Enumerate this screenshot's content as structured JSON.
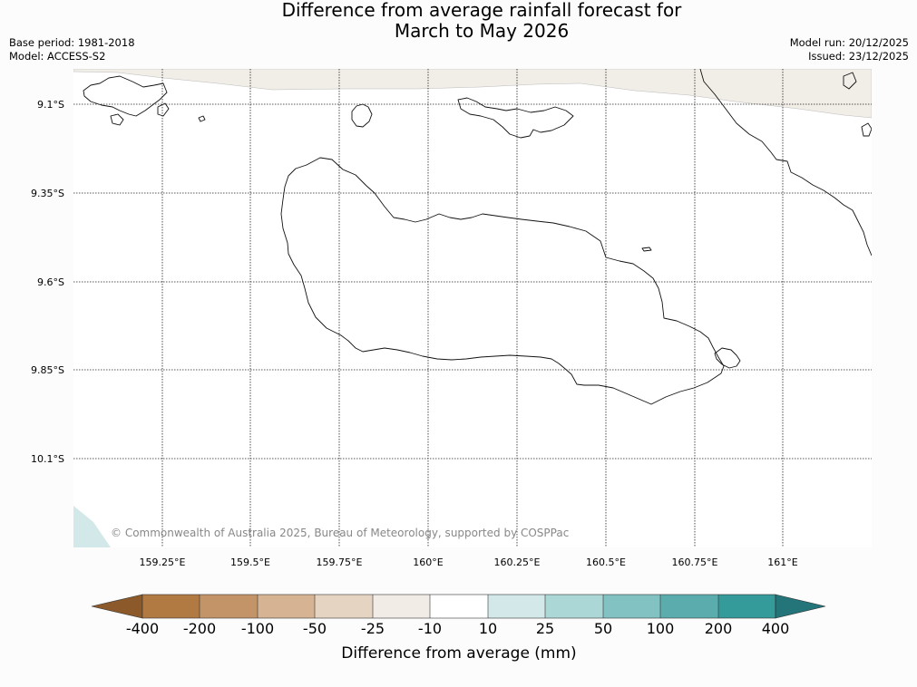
{
  "header": {
    "title_line1": "Difference from average rainfall forecast for",
    "title_line2": "March to May 2026",
    "base_period": "Base period: 1981-2018",
    "model": "Model: ACCESS-S2",
    "model_run": "Model run: 20/12/2025",
    "issued": "Issued: 23/12/2025"
  },
  "map": {
    "lat_labels": [
      "9.1°S",
      "9.35°S",
      "9.6°S",
      "9.85°S",
      "10.1°S"
    ],
    "lon_labels": [
      "159.25°E",
      "159.5°E",
      "159.75°E",
      "160°E",
      "160.25°E",
      "160.5°E",
      "160.75°E",
      "161°E"
    ],
    "copyright": "© Commonwealth of Australia 2025, Bureau of Meteorology, supported by COSPPac",
    "colors": {
      "land": "#fdfdfd",
      "dry_tint": "#f1ede7",
      "wet_tint": "#d3e8e8",
      "coast": "#111111"
    }
  },
  "colorbar": {
    "title": "Difference from average (mm)",
    "tick_labels": [
      "-400",
      "-200",
      "-100",
      "-50",
      "-25",
      "-10",
      "10",
      "25",
      "50",
      "100",
      "200",
      "400"
    ],
    "colors": [
      "#8c5a2a",
      "#b17a43",
      "#c39467",
      "#d6b493",
      "#e6d4c3",
      "#f1ece6",
      "#ffffff",
      "#d3e8e8",
      "#acd7d7",
      "#82c2c2",
      "#5bacac",
      "#349a9a",
      "#23757a"
    ]
  }
}
